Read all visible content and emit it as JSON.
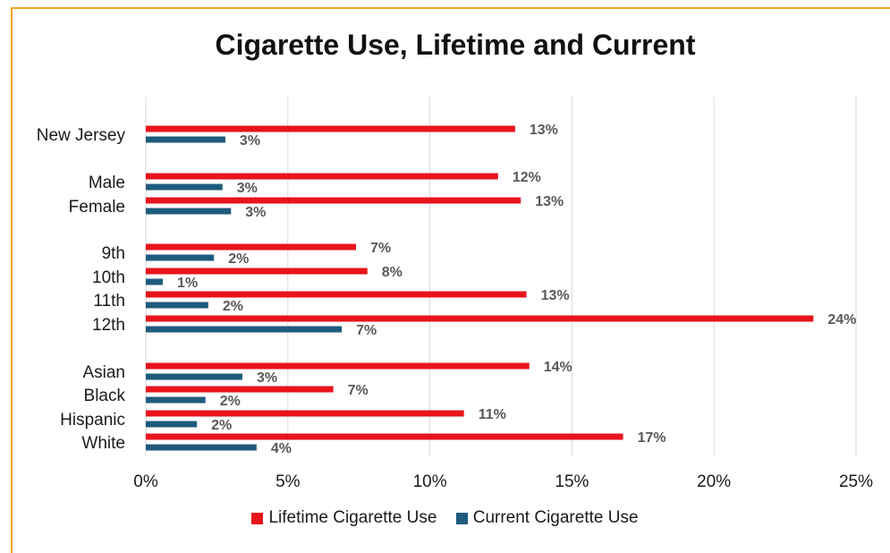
{
  "chart_data": {
    "type": "bar",
    "orientation": "horizontal",
    "title": "Cigarette Use, Lifetime and Current",
    "categories": [
      "New Jersey",
      "Male",
      "Female",
      "9th",
      "10th",
      "11th",
      "12th",
      "Asian",
      "Black",
      "Hispanic",
      "White"
    ],
    "series": [
      {
        "name": "Lifetime Cigarette Use",
        "color": "#e8141c",
        "values": [
          0.13,
          0.124,
          0.132,
          0.074,
          0.078,
          0.134,
          0.235,
          0.135,
          0.066,
          0.112,
          0.168
        ],
        "labels": [
          "13%",
          "12%",
          "13%",
          "7%",
          "8%",
          "13%",
          "24%",
          "14%",
          "7%",
          "11%",
          "17%"
        ]
      },
      {
        "name": "Current Cigarette Use",
        "color": "#1f5b7d",
        "values": [
          0.028,
          0.027,
          0.03,
          0.024,
          0.006,
          0.022,
          0.069,
          0.034,
          0.021,
          0.018,
          0.039
        ],
        "labels": [
          "3%",
          "3%",
          "3%",
          "2%",
          "1%",
          "2%",
          "7%",
          "3%",
          "2%",
          "2%",
          "4%"
        ]
      }
    ],
    "xlim": [
      0,
      0.25
    ],
    "x_ticks": [
      "0%",
      "5%",
      "10%",
      "15%",
      "20%",
      "25%"
    ],
    "grid": true,
    "legend_position": "bottom"
  }
}
